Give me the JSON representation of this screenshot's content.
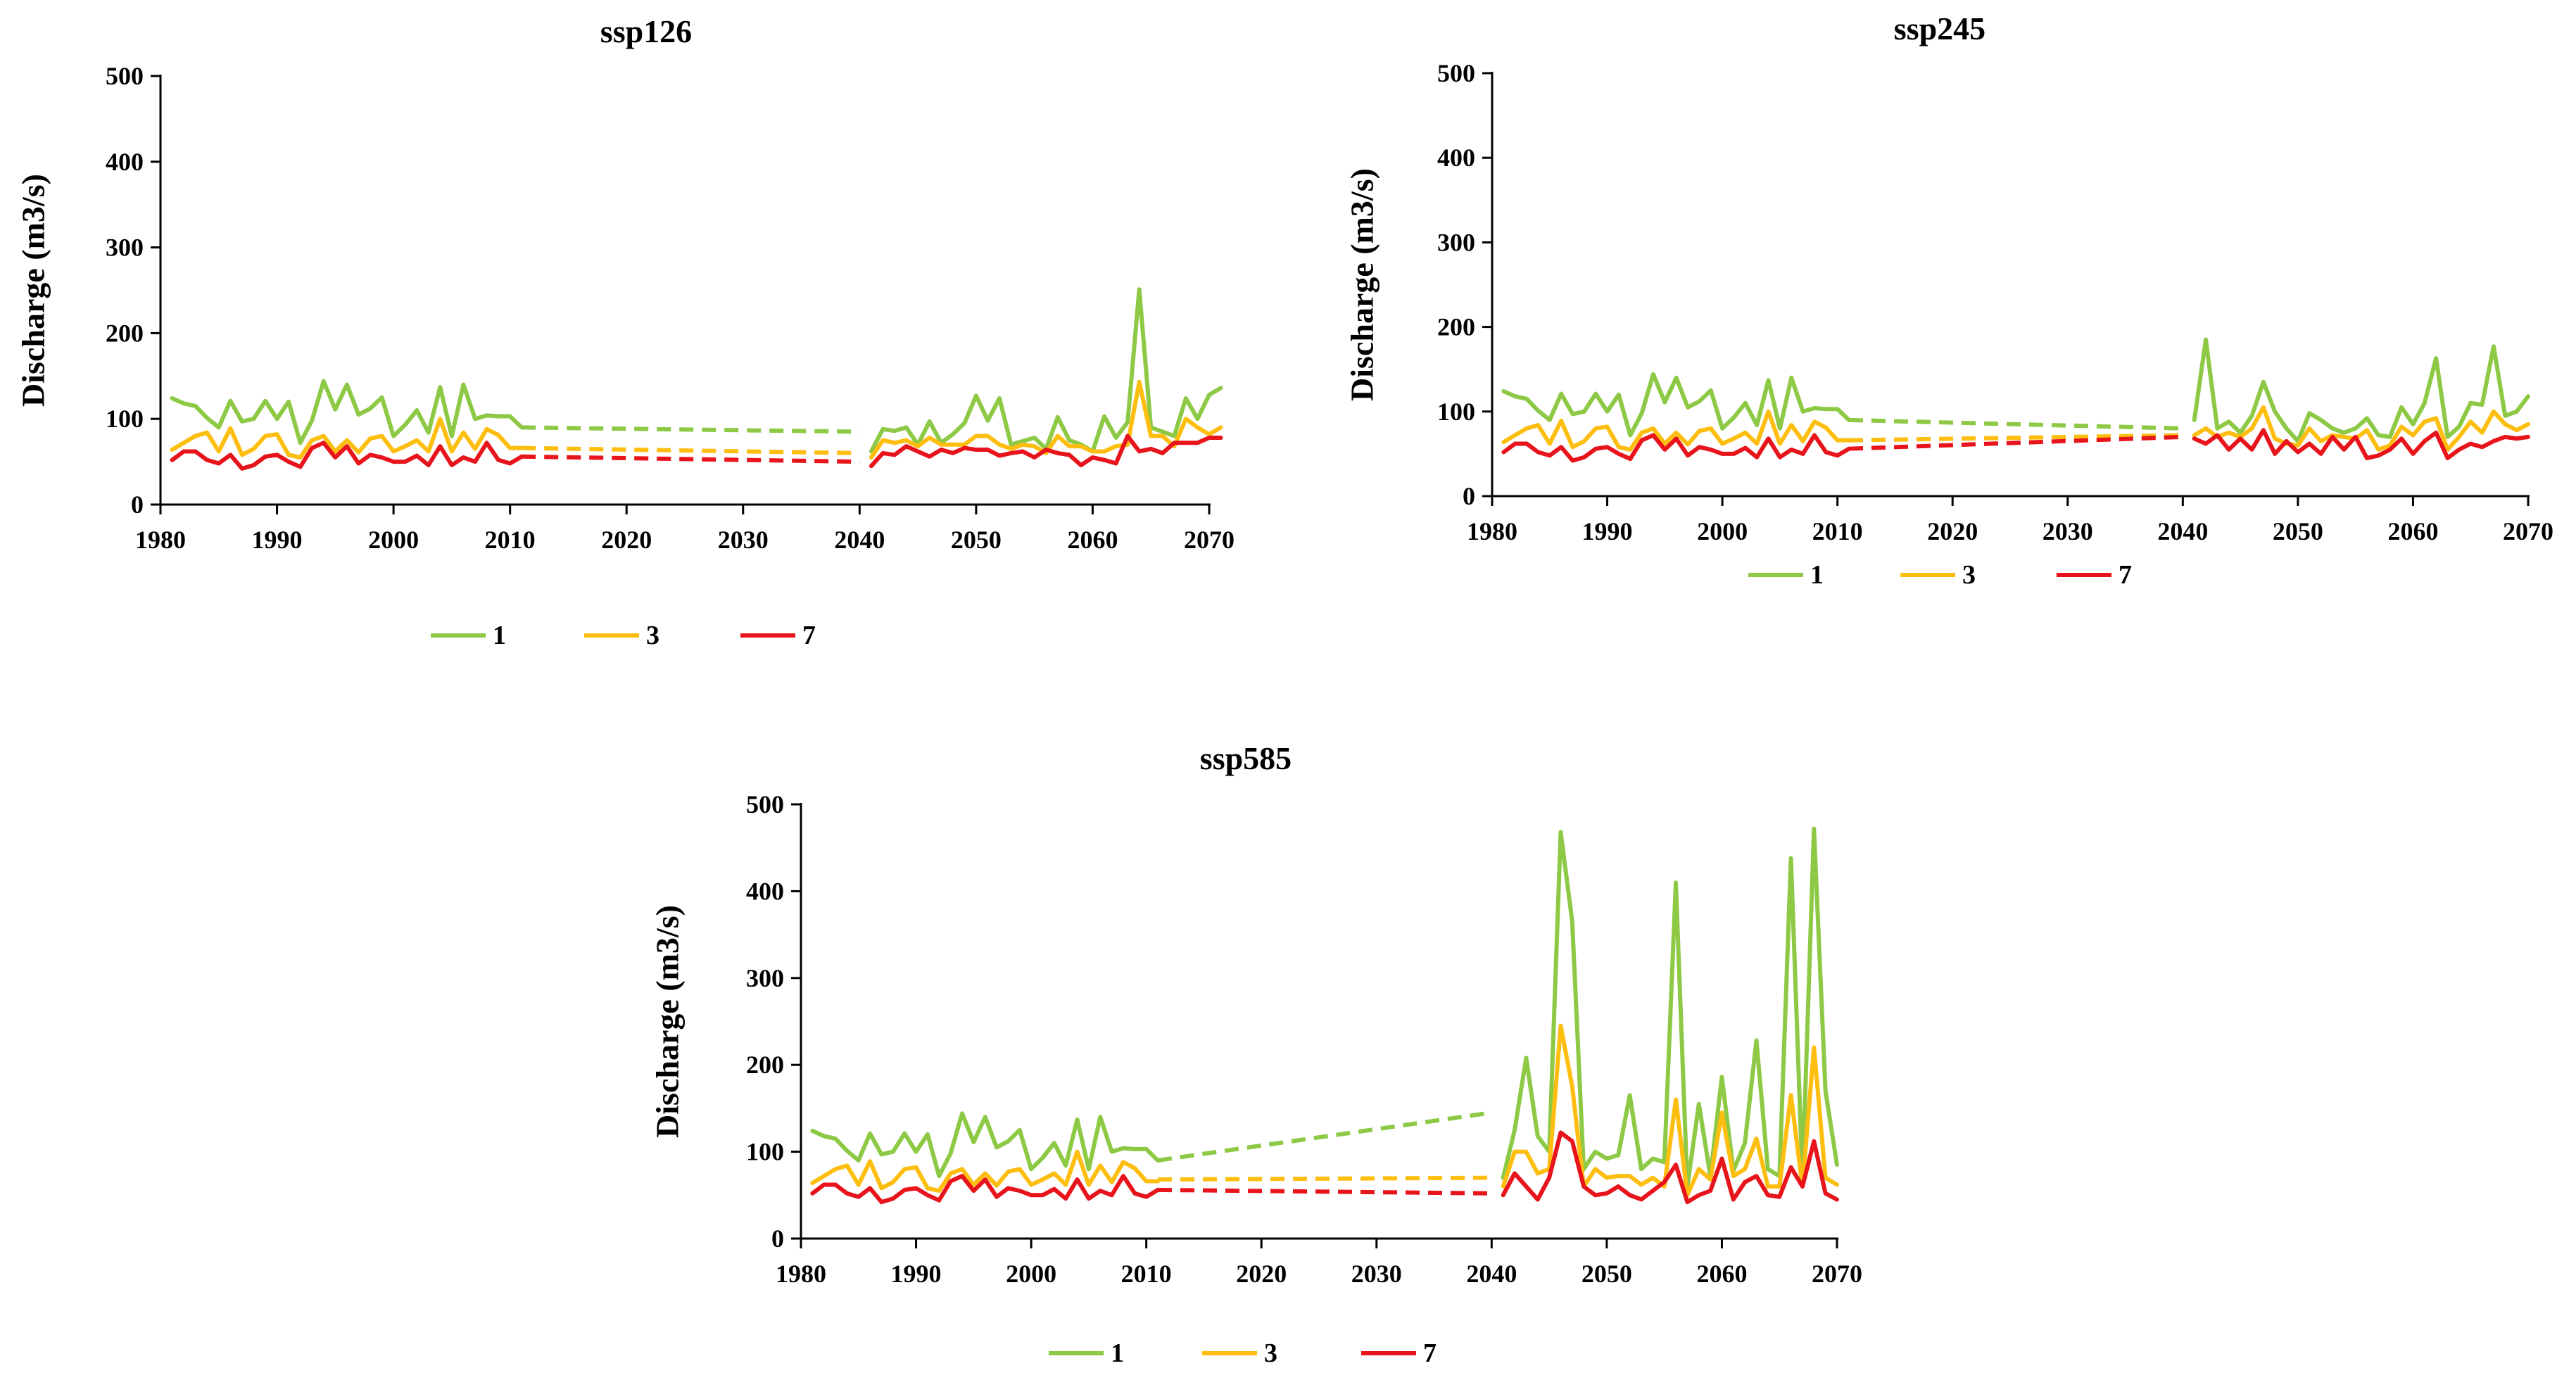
{
  "colors": {
    "s1": "#8DC945",
    "s3": "#FDBE10",
    "s7": "#E8141B",
    "axis": "#000000"
  },
  "chart_data": [
    {
      "type": "line",
      "title": "ssp126",
      "xlabel": "",
      "ylabel": "Discharge (m3/s)",
      "xlim": [
        1980,
        2070
      ],
      "ylim": [
        0,
        500
      ],
      "xticks": [
        1980,
        1990,
        2000,
        2010,
        2020,
        2030,
        2040,
        2050,
        2060,
        2070
      ],
      "yticks": [
        0,
        100,
        200,
        300,
        400,
        500
      ],
      "legend": [
        "1",
        "3",
        "7"
      ],
      "legend_position": "bottom",
      "series": [
        {
          "name": "1",
          "color_key": "s1",
          "historical": {
            "x_start": 1981,
            "values": [
              124,
              118,
              115,
              101,
              90,
              121,
              97,
              100,
              121,
              100,
              120,
              72,
              98,
              144,
              111,
              140,
              105,
              112,
              125,
              80,
              93,
              110,
              84,
              137,
              80,
              140,
              100,
              104,
              103,
              103,
              90
            ]
          },
          "gap": {
            "x": [
              2011,
              2040
            ],
            "values": [
              90,
              85
            ]
          },
          "future": {
            "x_start": 2041,
            "values": [
              62,
              88,
              86,
              90,
              70,
              97,
              72,
              82,
              95,
              127,
              98,
              124,
              70,
              74,
              78,
              65,
              102,
              75,
              70,
              62,
              103,
              78,
              96,
              251,
              90,
              85,
              80,
              124,
              100,
              128,
              136
            ]
          }
        },
        {
          "name": "3",
          "color_key": "s3",
          "historical": {
            "x_start": 1981,
            "values": [
              64,
              72,
              80,
              84,
              62,
              89,
              58,
              65,
              80,
              82,
              58,
              55,
              75,
              80,
              62,
              75,
              61,
              77,
              80,
              62,
              68,
              75,
              62,
              100,
              62,
              84,
              65,
              88,
              81,
              66,
              66
            ]
          },
          "gap": {
            "x": [
              2011,
              2040
            ],
            "values": [
              66,
              60
            ]
          },
          "future": {
            "x_start": 2041,
            "values": [
              55,
              75,
              72,
              75,
              68,
              78,
              70,
              70,
              70,
              80,
              80,
              70,
              65,
              70,
              68,
              60,
              80,
              68,
              68,
              62,
              62,
              68,
              70,
              143,
              80,
              80,
              68,
              100,
              90,
              82,
              90
            ]
          }
        },
        {
          "name": "7",
          "color_key": "s7",
          "historical": {
            "x_start": 1981,
            "values": [
              52,
              62,
              62,
              52,
              48,
              58,
              42,
              46,
              56,
              58,
              50,
              44,
              66,
              72,
              55,
              68,
              48,
              58,
              55,
              50,
              50,
              57,
              46,
              68,
              46,
              55,
              50,
              72,
              52,
              48,
              56
            ]
          },
          "gap": {
            "x": [
              2011,
              2040
            ],
            "values": [
              56,
              50
            ]
          },
          "future": {
            "x_start": 2041,
            "values": [
              45,
              60,
              58,
              68,
              62,
              56,
              64,
              60,
              66,
              64,
              64,
              57,
              60,
              62,
              55,
              64,
              60,
              58,
              46,
              55,
              52,
              48,
              80,
              62,
              65,
              60,
              72,
              72,
              72,
              78,
              78
            ]
          }
        }
      ]
    },
    {
      "type": "line",
      "title": "ssp245",
      "xlabel": "",
      "ylabel": "Discharge (m3/s)",
      "xlim": [
        1980,
        2070
      ],
      "ylim": [
        0,
        500
      ],
      "xticks": [
        1980,
        1990,
        2000,
        2010,
        2020,
        2030,
        2040,
        2050,
        2060,
        2070
      ],
      "yticks": [
        0,
        100,
        200,
        300,
        400,
        500
      ],
      "legend": [
        "1",
        "3",
        "7"
      ],
      "legend_position": "bottom",
      "series": [
        {
          "name": "1",
          "color_key": "s1",
          "historical": {
            "x_start": 1981,
            "values": [
              124,
              118,
              115,
              101,
              90,
              121,
              97,
              100,
              121,
              100,
              120,
              72,
              98,
              144,
              111,
              140,
              105,
              112,
              125,
              80,
              93,
              110,
              84,
              137,
              80,
              140,
              100,
              104,
              103,
              103,
              90
            ]
          },
          "gap": {
            "x": [
              2011,
              2040
            ],
            "values": [
              90,
              80
            ]
          },
          "future": {
            "x_start": 2041,
            "values": [
              90,
              185,
              80,
              88,
              75,
              95,
              135,
              100,
              80,
              65,
              98,
              90,
              80,
              75,
              80,
              92,
              72,
              70,
              105,
              85,
              110,
              163,
              70,
              82,
              110,
              108,
              177,
              95,
              100,
              118
            ]
          }
        },
        {
          "name": "3",
          "color_key": "s3",
          "historical": {
            "x_start": 1981,
            "values": [
              64,
              72,
              80,
              84,
              62,
              89,
              58,
              65,
              80,
              82,
              58,
              55,
              75,
              80,
              62,
              75,
              61,
              77,
              80,
              62,
              68,
              75,
              62,
              100,
              62,
              84,
              65,
              88,
              81,
              66,
              66
            ]
          },
          "gap": {
            "x": [
              2011,
              2040
            ],
            "values": [
              66,
              72
            ]
          },
          "future": {
            "x_start": 2041,
            "values": [
              72,
              80,
              70,
              75,
              70,
              80,
              105,
              68,
              62,
              60,
              80,
              65,
              72,
              70,
              68,
              78,
              55,
              60,
              82,
              72,
              88,
              92,
              55,
              70,
              88,
              75,
              100,
              85,
              78,
              85
            ]
          }
        },
        {
          "name": "7",
          "color_key": "s7",
          "historical": {
            "x_start": 1981,
            "values": [
              52,
              62,
              62,
              52,
              48,
              58,
              42,
              46,
              56,
              58,
              50,
              44,
              66,
              72,
              55,
              68,
              48,
              58,
              55,
              50,
              50,
              57,
              46,
              68,
              46,
              55,
              50,
              72,
              52,
              48,
              56
            ]
          },
          "gap": {
            "x": [
              2011,
              2040
            ],
            "values": [
              56,
              70
            ]
          },
          "future": {
            "x_start": 2041,
            "values": [
              68,
              62,
              72,
              55,
              68,
              55,
              78,
              50,
              65,
              52,
              62,
              50,
              70,
              55,
              70,
              45,
              48,
              55,
              68,
              50,
              65,
              75,
              45,
              55,
              62,
              58,
              65,
              70,
              68,
              70
            ]
          }
        }
      ]
    },
    {
      "type": "line",
      "title": "ssp585",
      "xlabel": "",
      "ylabel": "Discharge (m3/s)",
      "xlim": [
        1980,
        2070
      ],
      "ylim": [
        0,
        500
      ],
      "xticks": [
        1980,
        1990,
        2000,
        2010,
        2020,
        2030,
        2040,
        2050,
        2060,
        2070
      ],
      "yticks": [
        0,
        100,
        200,
        300,
        400,
        500
      ],
      "legend": [
        "1",
        "3",
        "7"
      ],
      "legend_position": "bottom",
      "series": [
        {
          "name": "1",
          "color_key": "s1",
          "historical": {
            "x_start": 1981,
            "values": [
              124,
              118,
              115,
              101,
              90,
              121,
              97,
              100,
              121,
              100,
              120,
              72,
              98,
              144,
              111,
              140,
              105,
              112,
              125,
              80,
              93,
              110,
              84,
              137,
              80,
              140,
              100,
              104,
              103,
              103,
              90
            ]
          },
          "gap": {
            "x": [
              2011,
              2040
            ],
            "values": [
              90,
              145
            ]
          },
          "future": {
            "x_start": 2041,
            "values": [
              70,
              125,
              208,
              118,
              100,
              468,
              365,
              80,
              100,
              92,
              96,
              165,
              80,
              92,
              88,
              410,
              60,
              155,
              72,
              186,
              78,
              110,
              228,
              80,
              72,
              438,
              70,
              472,
              170,
              85
            ]
          }
        },
        {
          "name": "3",
          "color_key": "s3",
          "historical": {
            "x_start": 1981,
            "values": [
              64,
              72,
              80,
              84,
              62,
              89,
              58,
              65,
              80,
              82,
              58,
              55,
              75,
              80,
              62,
              75,
              61,
              77,
              80,
              62,
              68,
              75,
              62,
              100,
              62,
              84,
              65,
              88,
              81,
              66,
              66
            ]
          },
          "gap": {
            "x": [
              2011,
              2040
            ],
            "values": [
              68,
              70
            ]
          },
          "future": {
            "x_start": 2041,
            "values": [
              60,
              100,
              100,
              75,
              80,
              245,
              175,
              60,
              80,
              70,
              72,
              72,
              62,
              70,
              60,
              160,
              50,
              80,
              68,
              145,
              72,
              80,
              115,
              60,
              60,
              165,
              60,
              220,
              70,
              62
            ]
          }
        },
        {
          "name": "7",
          "color_key": "s7",
          "historical": {
            "x_start": 1981,
            "values": [
              52,
              62,
              62,
              52,
              48,
              58,
              42,
              46,
              56,
              58,
              50,
              44,
              66,
              72,
              55,
              68,
              48,
              58,
              55,
              50,
              50,
              57,
              46,
              68,
              46,
              55,
              50,
              72,
              52,
              48,
              56
            ]
          },
          "gap": {
            "x": [
              2011,
              2040
            ],
            "values": [
              56,
              52
            ]
          },
          "future": {
            "x_start": 2041,
            "values": [
              50,
              75,
              60,
              45,
              70,
              122,
              112,
              60,
              50,
              52,
              60,
              50,
              45,
              55,
              65,
              85,
              42,
              50,
              55,
              92,
              45,
              65,
              72,
              50,
              48,
              82,
              60,
              112,
              52,
              45
            ]
          }
        }
      ]
    }
  ]
}
